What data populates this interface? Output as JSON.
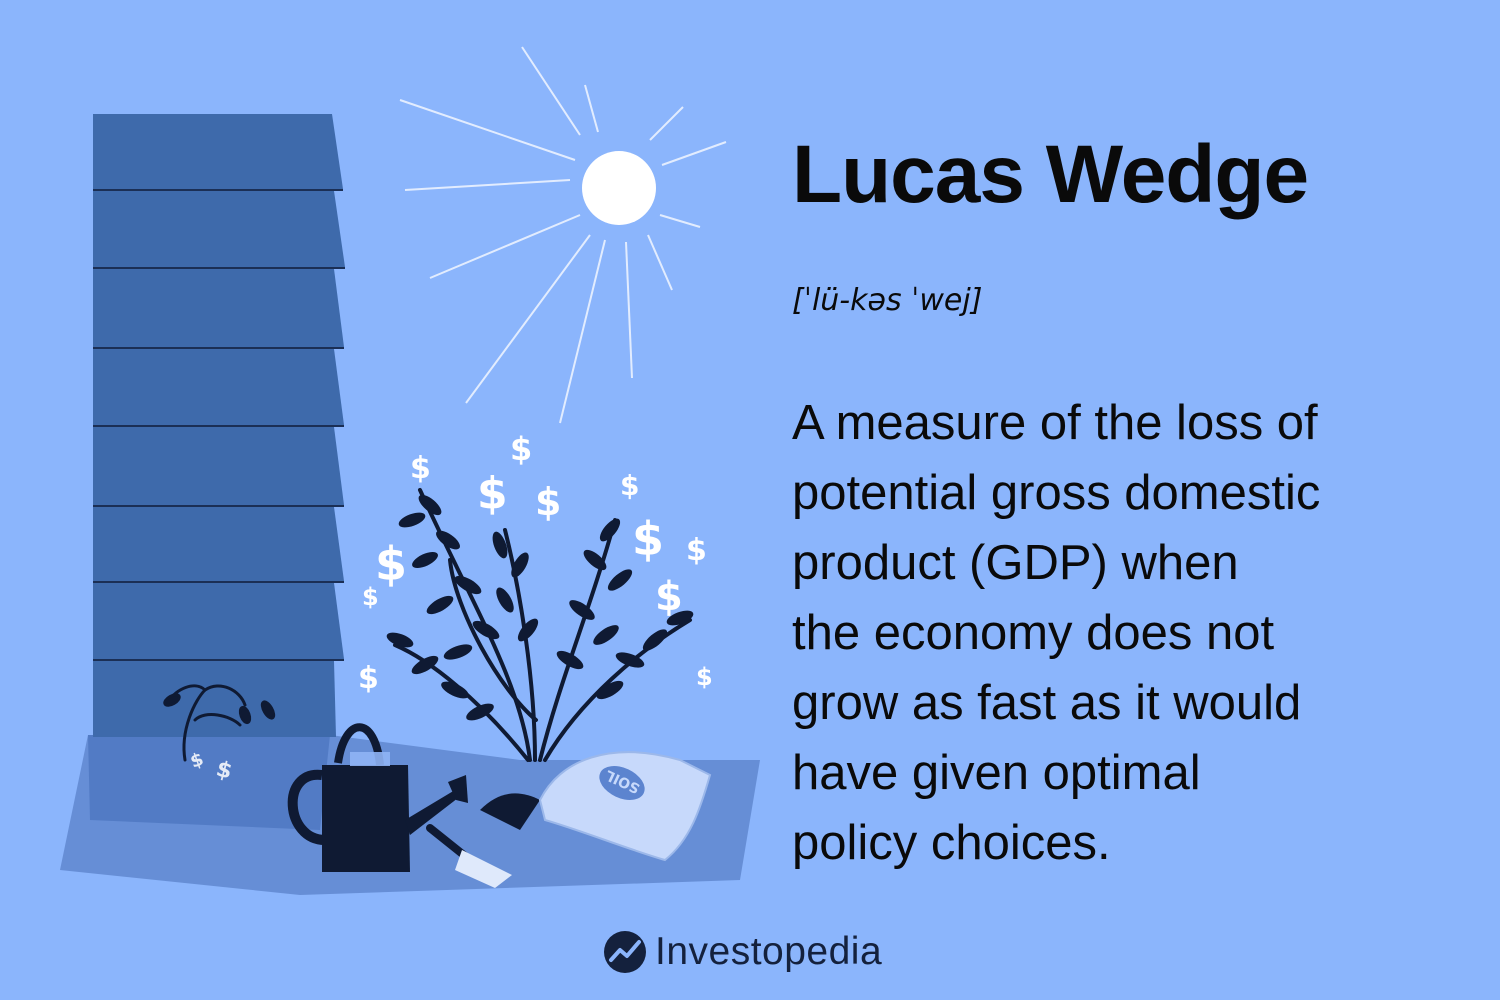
{
  "term": {
    "title": "Lucas Wedge",
    "pronunciation": "[ˈlü-kəs ˈwej]"
  },
  "definition": {
    "lines": [
      "A measure of the loss of",
      "potential gross domestic",
      "product (GDP) when",
      "the economy does not",
      "grow as fast as it would",
      "have given optimal",
      "policy choices."
    ]
  },
  "illustration": {
    "soil_bag_label": "SOIL",
    "currency_symbol": "$"
  },
  "brand": {
    "name": "Investopedia",
    "logo_icon": "investopedia-logo-icon"
  },
  "colors": {
    "background": "#8bb5fc",
    "building": "#3e6aab",
    "dark_ink": "#14213d",
    "sun": "#ffffff"
  }
}
